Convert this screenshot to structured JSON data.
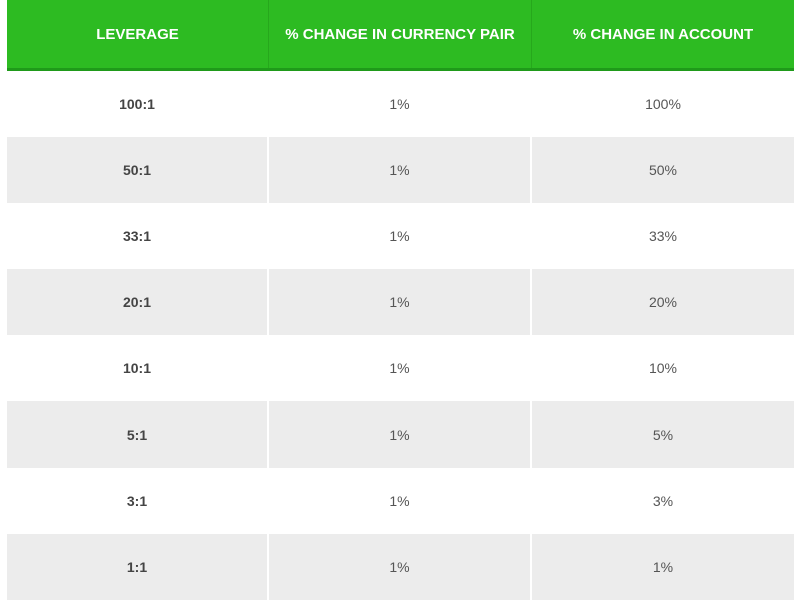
{
  "table": {
    "header": [
      "LEVERAGE",
      "% CHANGE IN CURRENCY PAIR",
      "% CHANGE IN ACCOUNT"
    ],
    "rows": [
      [
        "100:1",
        "1%",
        "100%"
      ],
      [
        "50:1",
        "1%",
        "50%"
      ],
      [
        "33:1",
        "1%",
        "33%"
      ],
      [
        "20:1",
        "1%",
        "20%"
      ],
      [
        "10:1",
        "1%",
        "10%"
      ],
      [
        "5:1",
        "1%",
        "5%"
      ],
      [
        "3:1",
        "1%",
        "3%"
      ],
      [
        "1:1",
        "1%",
        "1%"
      ]
    ]
  }
}
